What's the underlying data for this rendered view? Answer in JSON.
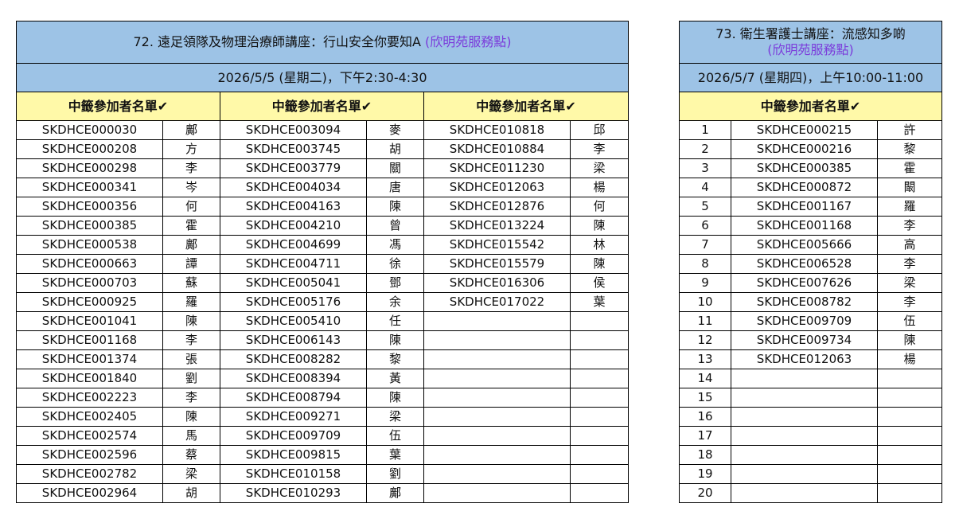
{
  "left_table": {
    "title": "72. 遠足領隊及物理治療師講座：行山安全你要知A",
    "venue": "(欣明苑服務點)",
    "date": "2026/5/5 (星期二)，下午2:30-4:30",
    "column_header": "中籤參加者名單",
    "check_icon": "✔",
    "columns": [
      [
        [
          "SKDHCE000030",
          "鄺"
        ],
        [
          "SKDHCE000208",
          "方"
        ],
        [
          "SKDHCE000298",
          "李"
        ],
        [
          "SKDHCE000341",
          "岑"
        ],
        [
          "SKDHCE000356",
          "何"
        ],
        [
          "SKDHCE000385",
          "霍"
        ],
        [
          "SKDHCE000538",
          "鄺"
        ],
        [
          "SKDHCE000663",
          "譚"
        ],
        [
          "SKDHCE000703",
          "蘇"
        ],
        [
          "SKDHCE000925",
          "羅"
        ],
        [
          "SKDHCE001041",
          "陳"
        ],
        [
          "SKDHCE001168",
          "李"
        ],
        [
          "SKDHCE001374",
          "張"
        ],
        [
          "SKDHCE001840",
          "劉"
        ],
        [
          "SKDHCE002223",
          "李"
        ],
        [
          "SKDHCE002405",
          "陳"
        ],
        [
          "SKDHCE002574",
          "馬"
        ],
        [
          "SKDHCE002596",
          "蔡"
        ],
        [
          "SKDHCE002782",
          "梁"
        ],
        [
          "SKDHCE002964",
          "胡"
        ]
      ],
      [
        [
          "SKDHCE003094",
          "麥"
        ],
        [
          "SKDHCE003745",
          "胡"
        ],
        [
          "SKDHCE003779",
          "關"
        ],
        [
          "SKDHCE004034",
          "唐"
        ],
        [
          "SKDHCE004163",
          "陳"
        ],
        [
          "SKDHCE004210",
          "曾"
        ],
        [
          "SKDHCE004699",
          "馮"
        ],
        [
          "SKDHCE004711",
          "徐"
        ],
        [
          "SKDHCE005041",
          "鄧"
        ],
        [
          "SKDHCE005176",
          "余"
        ],
        [
          "SKDHCE005410",
          "任"
        ],
        [
          "SKDHCE006143",
          "陳"
        ],
        [
          "SKDHCE008282",
          "黎"
        ],
        [
          "SKDHCE008394",
          "黃"
        ],
        [
          "SKDHCE008794",
          "陳"
        ],
        [
          "SKDHCE009271",
          "梁"
        ],
        [
          "SKDHCE009709",
          "伍"
        ],
        [
          "SKDHCE009815",
          "葉"
        ],
        [
          "SKDHCE010158",
          "劉"
        ],
        [
          "SKDHCE010293",
          "鄺"
        ]
      ],
      [
        [
          "SKDHCE010818",
          "邱"
        ],
        [
          "SKDHCE010884",
          "李"
        ],
        [
          "SKDHCE011230",
          "梁"
        ],
        [
          "SKDHCE012063",
          "楊"
        ],
        [
          "SKDHCE012876",
          "何"
        ],
        [
          "SKDHCE013224",
          "陳"
        ],
        [
          "SKDHCE015542",
          "林"
        ],
        [
          "SKDHCE015579",
          "陳"
        ],
        [
          "SKDHCE016306",
          "侯"
        ],
        [
          "SKDHCE017022",
          "葉"
        ],
        [
          "",
          ""
        ],
        [
          "",
          ""
        ],
        [
          "",
          ""
        ],
        [
          "",
          ""
        ],
        [
          "",
          ""
        ],
        [
          "",
          ""
        ],
        [
          "",
          ""
        ],
        [
          "",
          ""
        ],
        [
          "",
          ""
        ],
        [
          "",
          ""
        ]
      ]
    ]
  },
  "right_table": {
    "title": "73. 衛生署護士講座：流感知多啲",
    "venue": "(欣明苑服務點)",
    "date": "2026/5/7 (星期四)，上午10:00-11:00",
    "column_header": "中籤參加者名單",
    "check_icon": "✔",
    "rows": [
      [
        "1",
        "SKDHCE000215",
        "許"
      ],
      [
        "2",
        "SKDHCE000216",
        "黎"
      ],
      [
        "3",
        "SKDHCE000385",
        "霍"
      ],
      [
        "4",
        "SKDHCE000872",
        "闞"
      ],
      [
        "5",
        "SKDHCE001167",
        "羅"
      ],
      [
        "6",
        "SKDHCE001168",
        "李"
      ],
      [
        "7",
        "SKDHCE005666",
        "高"
      ],
      [
        "8",
        "SKDHCE006528",
        "李"
      ],
      [
        "9",
        "SKDHCE007626",
        "梁"
      ],
      [
        "10",
        "SKDHCE008782",
        "李"
      ],
      [
        "11",
        "SKDHCE009709",
        "伍"
      ],
      [
        "12",
        "SKDHCE009734",
        "陳"
      ],
      [
        "13",
        "SKDHCE012063",
        "楊"
      ],
      [
        "14",
        "",
        ""
      ],
      [
        "15",
        "",
        ""
      ],
      [
        "16",
        "",
        ""
      ],
      [
        "17",
        "",
        ""
      ],
      [
        "18",
        "",
        ""
      ],
      [
        "19",
        "",
        ""
      ],
      [
        "20",
        "",
        ""
      ]
    ]
  }
}
